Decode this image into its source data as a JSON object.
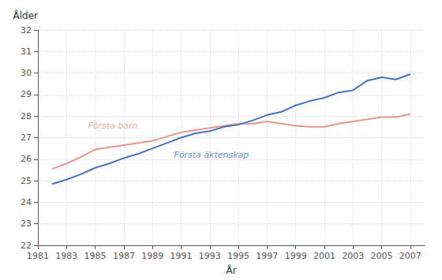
{
  "chart_data": {
    "type": "line",
    "xlabel": "År",
    "ylabel": "Ålder",
    "x": [
      1982,
      1983,
      1984,
      1985,
      1986,
      1987,
      1988,
      1989,
      1990,
      1991,
      1992,
      1993,
      1994,
      1995,
      1996,
      1997,
      1998,
      1999,
      2000,
      2001,
      2002,
      2003,
      2004,
      2005,
      2006,
      2007
    ],
    "series": [
      {
        "color": "#e8968a",
        "values": [
          25.55,
          25.8,
          26.1,
          26.45,
          26.55,
          26.65,
          26.75,
          26.85,
          27.05,
          27.25,
          27.35,
          27.45,
          27.55,
          27.65,
          27.65,
          27.75,
          27.65,
          27.55,
          27.5,
          27.5,
          27.65,
          27.75,
          27.85,
          27.95,
          27.95,
          28.1
        ]
      },
      {
        "color": "#4472c4",
        "values": [
          24.85,
          25.05,
          25.3,
          25.6,
          25.8,
          26.05,
          26.25,
          26.5,
          26.75,
          27.0,
          27.2,
          27.3,
          27.5,
          27.6,
          27.8,
          28.05,
          28.2,
          28.5,
          28.7,
          28.85,
          29.1,
          29.2,
          29.65,
          29.8,
          29.7,
          29.95
        ]
      }
    ],
    "annotations": [
      {
        "text": "Första barn",
        "x": 1984.5,
        "y": 27.55,
        "color": "#e8968a"
      },
      {
        "text": "Första äktenskap",
        "x": 1990.5,
        "y": 26.2,
        "color": "#4472c4"
      }
    ],
    "xlim": [
      1981,
      2008
    ],
    "xticks": [
      1981,
      1983,
      1985,
      1987,
      1989,
      1991,
      1993,
      1995,
      1997,
      1999,
      2001,
      2003,
      2005,
      2007
    ],
    "ylim": [
      22,
      32
    ],
    "yticks": [
      22,
      23,
      24,
      25,
      26,
      27,
      28,
      29,
      30,
      31,
      32
    ],
    "grid": true
  }
}
